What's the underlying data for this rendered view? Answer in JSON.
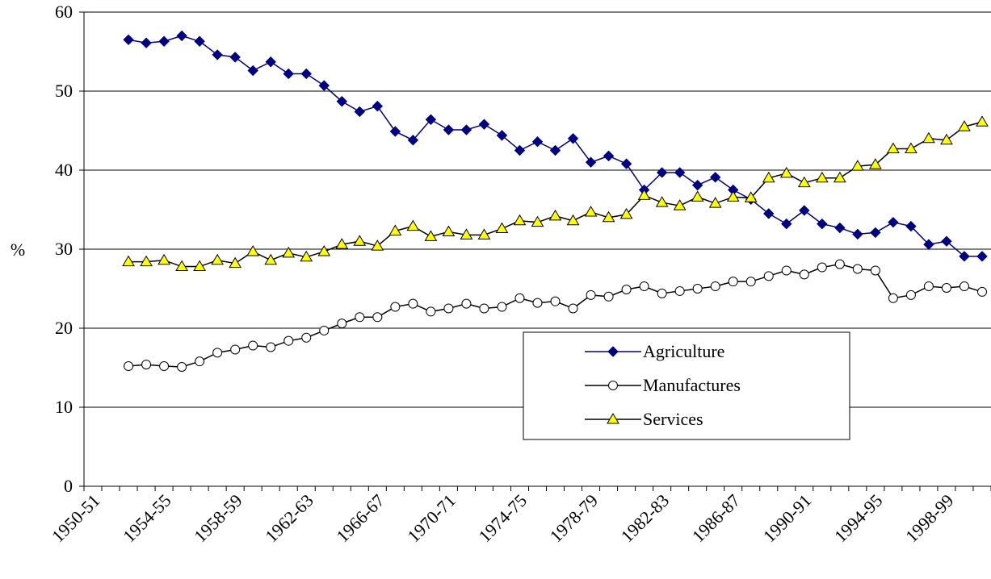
{
  "chart_data": {
    "type": "line",
    "y_label": "%",
    "categories": [
      "1950-51",
      null,
      null,
      null,
      "1954-55",
      null,
      null,
      null,
      "1958-59",
      null,
      null,
      null,
      "1962-63",
      null,
      null,
      null,
      "1966-67",
      null,
      null,
      null,
      "1970-71",
      null,
      null,
      null,
      "1974-75",
      null,
      null,
      null,
      "1978-79",
      null,
      null,
      null,
      "1982-83",
      null,
      null,
      null,
      "1986-87",
      null,
      null,
      null,
      "1990-91",
      null,
      null,
      null,
      "1994-95",
      null,
      null,
      null,
      "1998-99",
      null,
      null
    ],
    "series": [
      {
        "name": "Agriculture",
        "color": "#000080",
        "marker": "diamond",
        "values": [
          null,
          null,
          56.5,
          56.1,
          56.3,
          57.0,
          56.3,
          54.6,
          54.3,
          52.6,
          53.7,
          52.2,
          52.2,
          50.7,
          48.7,
          47.4,
          48.1,
          44.9,
          43.8,
          46.4,
          45.1,
          45.1,
          45.8,
          44.4,
          42.5,
          43.6,
          42.5,
          44.0,
          41.0,
          41.8,
          40.8,
          37.5,
          39.7,
          39.7,
          38.1,
          39.1,
          37.5,
          36.3,
          34.5,
          33.2,
          34.9,
          33.2,
          32.7,
          31.9,
          32.1,
          33.4,
          32.9,
          30.6,
          31.0,
          29.1,
          29.1
        ]
      },
      {
        "name": "Manufactures",
        "color": "#000000",
        "marker": "circle",
        "values": [
          null,
          null,
          15.2,
          15.4,
          15.2,
          15.1,
          15.8,
          16.9,
          17.3,
          17.8,
          17.6,
          18.4,
          18.8,
          19.7,
          20.6,
          21.4,
          21.4,
          22.7,
          23.1,
          22.1,
          22.5,
          23.1,
          22.5,
          22.7,
          23.8,
          23.2,
          23.4,
          22.5,
          24.2,
          24.0,
          24.9,
          25.3,
          24.4,
          24.7,
          25.0,
          25.3,
          25.9,
          25.9,
          26.6,
          27.3,
          26.8,
          27.7,
          28.1,
          27.5,
          27.3,
          23.8,
          24.2,
          25.3,
          25.1,
          25.3,
          24.6
        ]
      },
      {
        "name": "Services",
        "color": "#000000",
        "marker": "triangle",
        "marker_fill": "#ffff00",
        "values": [
          null,
          null,
          28.4,
          28.4,
          28.6,
          27.8,
          27.8,
          28.6,
          28.2,
          29.7,
          28.6,
          29.5,
          29.0,
          29.7,
          30.6,
          31.0,
          30.4,
          32.3,
          32.9,
          31.6,
          32.2,
          31.8,
          31.8,
          32.6,
          33.6,
          33.4,
          34.2,
          33.6,
          34.7,
          34.0,
          34.4,
          36.8,
          35.9,
          35.5,
          36.6,
          35.8,
          36.6,
          36.5,
          39.0,
          39.6,
          38.4,
          39.0,
          39.0,
          40.5,
          40.7,
          42.7,
          42.7,
          44.0,
          43.8,
          45.5,
          46.1
        ]
      }
    ],
    "ylim": [
      0,
      60
    ],
    "yticks": [
      0,
      10,
      20,
      30,
      40,
      50,
      60
    ],
    "grid": true,
    "legend": "lower-right"
  }
}
